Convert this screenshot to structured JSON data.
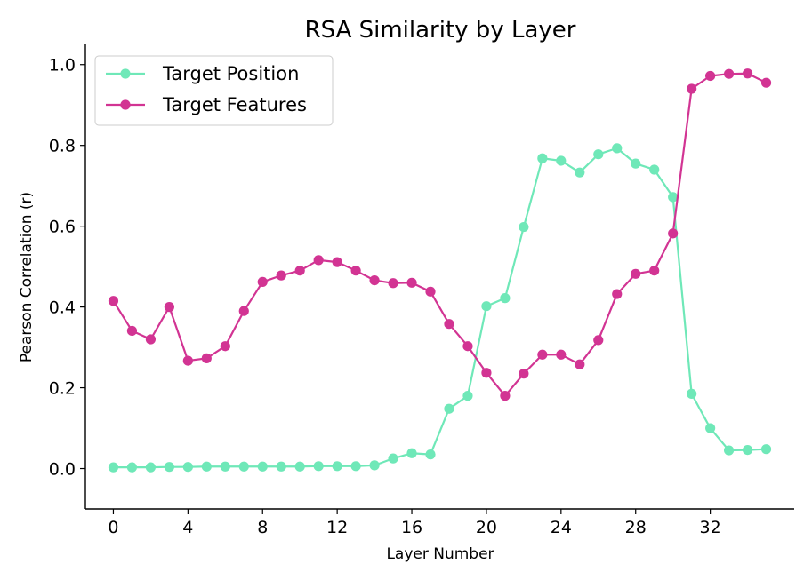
{
  "chart_data": {
    "type": "line",
    "title": "RSA Similarity by Layer",
    "xlabel": "Layer Number",
    "ylabel": "Pearson Correlation (r)",
    "xlim": [
      -1.5,
      36.5
    ],
    "ylim": [
      -0.1,
      1.05
    ],
    "xticks": [
      0,
      4,
      8,
      12,
      16,
      20,
      24,
      28,
      32
    ],
    "yticks": [
      0.0,
      0.2,
      0.4,
      0.6,
      0.8,
      1.0
    ],
    "ytick_labels": [
      "0.0",
      "0.2",
      "0.4",
      "0.6",
      "0.8",
      "1.0"
    ],
    "grid": false,
    "legend_position": "top-left",
    "x": [
      0,
      1,
      2,
      3,
      4,
      5,
      6,
      7,
      8,
      9,
      10,
      11,
      12,
      13,
      14,
      15,
      16,
      17,
      18,
      19,
      20,
      21,
      22,
      23,
      24,
      25,
      26,
      27,
      28,
      29,
      30,
      31,
      32,
      33,
      34,
      35
    ],
    "series": [
      {
        "name": "Target Position",
        "color": "#6fe8b8",
        "values": [
          0.003,
          0.003,
          0.003,
          0.004,
          0.004,
          0.005,
          0.005,
          0.005,
          0.005,
          0.005,
          0.005,
          0.006,
          0.006,
          0.006,
          0.008,
          0.025,
          0.038,
          0.035,
          0.148,
          0.18,
          0.402,
          0.422,
          0.598,
          0.768,
          0.762,
          0.733,
          0.778,
          0.793,
          0.755,
          0.74,
          0.672,
          0.185,
          0.1,
          0.045,
          0.046,
          0.048
        ]
      },
      {
        "name": "Target Features",
        "color": "#d23493",
        "values": [
          0.415,
          0.341,
          0.32,
          0.4,
          0.267,
          0.273,
          0.303,
          0.39,
          0.462,
          0.478,
          0.49,
          0.516,
          0.511,
          0.49,
          0.466,
          0.459,
          0.46,
          0.438,
          0.358,
          0.303,
          0.237,
          0.18,
          0.235,
          0.282,
          0.282,
          0.258,
          0.318,
          0.432,
          0.482,
          0.49,
          0.582,
          0.94,
          0.972,
          0.977,
          0.978,
          0.955
        ]
      }
    ]
  }
}
